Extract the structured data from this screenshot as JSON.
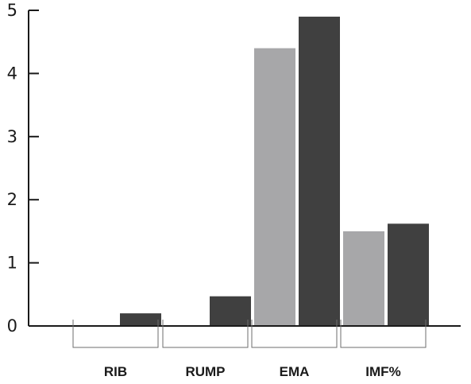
{
  "chart_data": {
    "type": "bar",
    "categories": [
      "RIB",
      "RUMP",
      "EMA",
      "IMF%"
    ],
    "series": [
      {
        "values": [
          0,
          0,
          4.4,
          1.5
        ],
        "color": "#a7a7a9"
      },
      {
        "values": [
          0.2,
          0.47,
          4.9,
          1.62
        ],
        "color": "#404040"
      }
    ],
    "yticks": [
      "0",
      "1",
      "2",
      "3",
      "4",
      "5"
    ],
    "ylim": [
      0,
      5
    ],
    "grid": false,
    "legend": "none"
  }
}
